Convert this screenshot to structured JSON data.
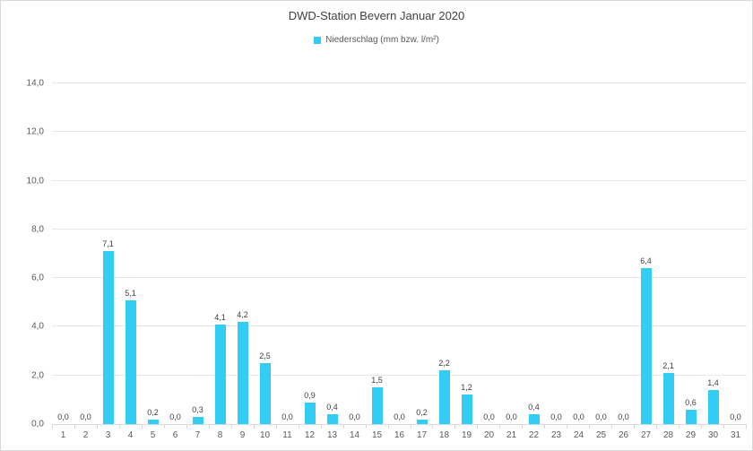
{
  "window": {
    "background": "#FFFFFF",
    "border_color": "#D9D9D9"
  },
  "chart_data": {
    "type": "bar",
    "title": "DWD-Station Bevern Januar 2020",
    "series_name": "Niederschlag (mm bzw. l/m²)",
    "legend_position": "top",
    "grid": true,
    "categories": [
      1,
      2,
      3,
      4,
      5,
      6,
      7,
      8,
      9,
      10,
      11,
      12,
      13,
      14,
      15,
      16,
      17,
      18,
      19,
      20,
      21,
      22,
      23,
      24,
      25,
      26,
      27,
      28,
      29,
      30,
      31
    ],
    "values": [
      0.0,
      0.0,
      7.1,
      5.1,
      0.2,
      0.0,
      0.3,
      4.1,
      4.2,
      2.5,
      0.0,
      0.9,
      0.4,
      0.0,
      1.5,
      0.0,
      0.2,
      2.2,
      1.2,
      0.0,
      0.0,
      0.4,
      0.0,
      0.0,
      0.0,
      0.0,
      6.4,
      2.1,
      0.6,
      1.4,
      0.0
    ],
    "value_labels": [
      "0,0",
      "0,0",
      "7,1",
      "5,1",
      "0,2",
      "0,0",
      "0,3",
      "4,1",
      "4,2",
      "2,5",
      "0,0",
      "0,9",
      "0,4",
      "0,0",
      "1,5",
      "0,0",
      "0,2",
      "2,2",
      "1,2",
      "0,0",
      "0,0",
      "0,4",
      "0,0",
      "0,0",
      "0,0",
      "0,0",
      "6,4",
      "2,1",
      "0,6",
      "1,4",
      "0,0"
    ],
    "xlabel": "",
    "ylabel": "",
    "ylim": [
      0,
      14
    ],
    "ytick_step": 2,
    "ytick_labels": [
      "0,0",
      "2,0",
      "4,0",
      "6,0",
      "8,0",
      "10,0",
      "12,0",
      "14,0"
    ],
    "bar_color": "#33CCF5",
    "grid_color": "#E6E6E6",
    "axis_color": "#D9D9D9",
    "title_color": "#404040",
    "axis_label_color": "#595959",
    "value_label_color": "#404040"
  }
}
